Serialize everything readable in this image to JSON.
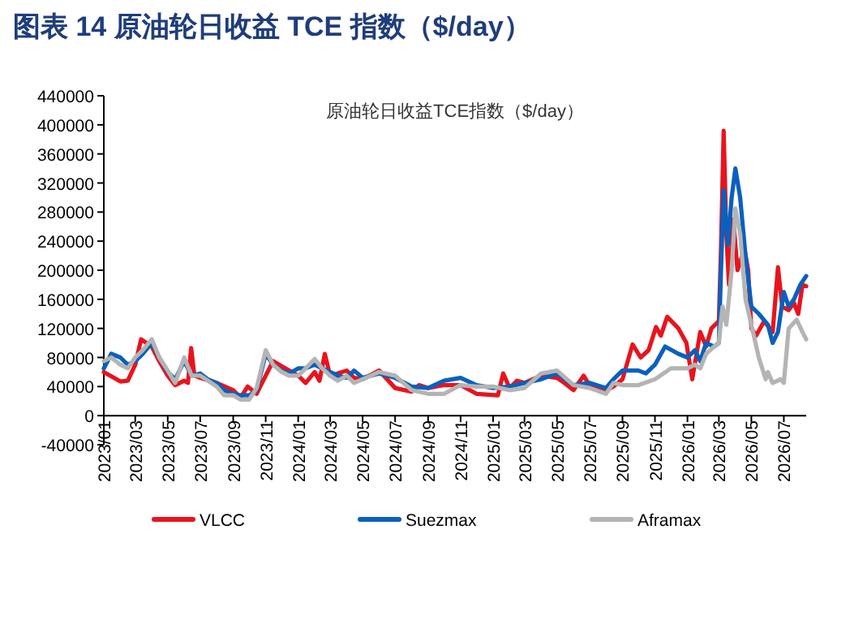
{
  "chart_data": {
    "type": "line",
    "title": "图表 14 原油轮日收益 TCE 指数（$/day）",
    "subtitle": "原油轮日收益TCE指数（$/day）",
    "xlim": [
      "2023-01-01",
      "2026-08-12"
    ],
    "xticks": [
      {
        "value": "2023-01",
        "label": "2023/01"
      },
      {
        "value": "2023-03",
        "label": "2023/03"
      },
      {
        "value": "2023-05",
        "label": "2023/05"
      },
      {
        "value": "2023-07",
        "label": "2023/07"
      },
      {
        "value": "2023-09",
        "label": "2023/09"
      },
      {
        "value": "2023-11",
        "label": "2023/11"
      },
      {
        "value": "2024-01",
        "label": "2024/01"
      },
      {
        "value": "2024-03",
        "label": "2024/03"
      },
      {
        "value": "2024-05",
        "label": "2024/05"
      },
      {
        "value": "2024-07",
        "label": "2024/07"
      },
      {
        "value": "2024-09",
        "label": "2024/09"
      },
      {
        "value": "2024-11",
        "label": "2024/11"
      },
      {
        "value": "2025-01",
        "label": "2025/01"
      },
      {
        "value": "2025-03",
        "label": "2025/03"
      },
      {
        "value": "2025-05",
        "label": "2025/05"
      },
      {
        "value": "2025-07",
        "label": "2025/07"
      },
      {
        "value": "2025-09",
        "label": "2025/09"
      },
      {
        "value": "2025-11",
        "label": "2025/11"
      },
      {
        "value": "2026-01",
        "label": "2026/01"
      },
      {
        "value": "2026-03",
        "label": "2026/03"
      },
      {
        "value": "2026-05",
        "label": "2026/05"
      },
      {
        "value": "2026-07",
        "label": "2026/07"
      }
    ],
    "ylim": [
      -40000,
      440000
    ],
    "yticks": [
      -40000,
      0,
      40000,
      80000,
      120000,
      160000,
      200000,
      240000,
      280000,
      320000,
      360000,
      400000,
      440000
    ],
    "grid": false,
    "legend": "bottom",
    "marker": "none",
    "line_style": "solid",
    "series": [
      {
        "name": "VLCC",
        "color": "#e8141d",
        "x": [
          "2023-01-01",
          "2023-02-01",
          "2023-02-15",
          "2023-03-01",
          "2023-03-12",
          "2023-04-01",
          "2023-04-15",
          "2023-05-01",
          "2023-05-15",
          "2023-06-01",
          "2023-06-08",
          "2023-06-14",
          "2023-06-20",
          "2023-07-01",
          "2023-08-01",
          "2023-09-01",
          "2023-09-15",
          "2023-09-28",
          "2023-10-15",
          "2023-11-01",
          "2023-11-15",
          "2023-12-01",
          "2024-01-01",
          "2024-01-15",
          "2024-02-01",
          "2024-02-10",
          "2024-02-20",
          "2024-03-01",
          "2024-03-15",
          "2024-04-01",
          "2024-04-15",
          "2024-05-01",
          "2024-06-01",
          "2024-07-01",
          "2024-08-01",
          "2024-08-15",
          "2024-09-01",
          "2024-10-01",
          "2024-11-01",
          "2024-12-01",
          "2025-01-10",
          "2025-01-20",
          "2025-02-01",
          "2025-02-15",
          "2025-03-01",
          "2025-04-01",
          "2025-05-01",
          "2025-05-15",
          "2025-06-01",
          "2025-06-20",
          "2025-07-01",
          "2025-08-01",
          "2025-08-15",
          "2025-09-01",
          "2025-09-20",
          "2025-10-05",
          "2025-10-20",
          "2025-11-03",
          "2025-11-12",
          "2025-11-24",
          "2025-12-15",
          "2025-12-30",
          "2026-01-10",
          "2026-01-25",
          "2026-02-05",
          "2026-02-15",
          "2026-03-01",
          "2026-03-05",
          "2026-03-10",
          "2026-03-15",
          "2026-03-20",
          "2026-03-28",
          "2026-04-05",
          "2026-04-18",
          "2026-04-25",
          "2026-05-01",
          "2026-05-10",
          "2026-05-25",
          "2026-06-10",
          "2026-06-20",
          "2026-06-28",
          "2026-07-10",
          "2026-07-20",
          "2026-07-28",
          "2026-08-05",
          "2026-08-12"
        ],
        "values": [
          60000,
          47000,
          48000,
          70000,
          105000,
          95000,
          75000,
          55000,
          42000,
          48000,
          45000,
          93000,
          55000,
          52000,
          45000,
          35000,
          25000,
          40000,
          30000,
          55000,
          75000,
          68000,
          55000,
          45000,
          60000,
          48000,
          85000,
          55000,
          58000,
          62000,
          52000,
          50000,
          62000,
          38000,
          33000,
          42000,
          38000,
          42000,
          42000,
          30000,
          28000,
          58000,
          38000,
          48000,
          45000,
          55000,
          52000,
          45000,
          35000,
          55000,
          42000,
          35000,
          40000,
          50000,
          98000,
          80000,
          90000,
          122000,
          110000,
          136000,
          120000,
          100000,
          50000,
          115000,
          95000,
          120000,
          130000,
          230000,
          392000,
          250000,
          180000,
          270000,
          200000,
          230000,
          200000,
          120000,
          110000,
          130000,
          115000,
          204000,
          150000,
          145000,
          155000,
          140000,
          180000,
          178000
        ]
      },
      {
        "name": "Suezmax",
        "color": "#0a60be",
        "x": [
          "2023-01-01",
          "2023-01-15",
          "2023-02-01",
          "2023-02-15",
          "2023-03-01",
          "2023-03-15",
          "2023-04-01",
          "2023-04-15",
          "2023-05-01",
          "2023-05-15",
          "2023-06-01",
          "2023-06-15",
          "2023-07-01",
          "2023-07-15",
          "2023-08-01",
          "2023-08-15",
          "2023-09-01",
          "2023-09-15",
          "2023-10-01",
          "2023-10-15",
          "2023-11-01",
          "2023-11-15",
          "2023-12-01",
          "2023-12-15",
          "2024-01-01",
          "2024-01-15",
          "2024-02-01",
          "2024-02-15",
          "2024-03-01",
          "2024-03-15",
          "2024-04-01",
          "2024-04-15",
          "2024-05-01",
          "2024-06-01",
          "2024-07-01",
          "2024-08-01",
          "2024-09-01",
          "2024-10-01",
          "2024-11-01",
          "2024-12-01",
          "2025-01-01",
          "2025-02-01",
          "2025-03-01",
          "2025-04-01",
          "2025-05-01",
          "2025-06-01",
          "2025-07-01",
          "2025-08-01",
          "2025-08-15",
          "2025-09-01",
          "2025-10-01",
          "2025-10-15",
          "2025-11-01",
          "2025-11-20",
          "2025-12-15",
          "2026-01-01",
          "2026-01-15",
          "2026-01-25",
          "2026-02-05",
          "2026-02-20",
          "2026-03-01",
          "2026-03-05",
          "2026-03-10",
          "2026-03-18",
          "2026-03-25",
          "2026-04-01",
          "2026-04-10",
          "2026-04-20",
          "2026-05-01",
          "2026-05-15",
          "2026-06-01",
          "2026-06-10",
          "2026-06-20",
          "2026-07-01",
          "2026-07-10",
          "2026-07-20",
          "2026-08-01",
          "2026-08-12"
        ],
        "values": [
          65000,
          85000,
          80000,
          70000,
          75000,
          85000,
          100000,
          80000,
          60000,
          50000,
          75000,
          55000,
          58000,
          50000,
          45000,
          35000,
          30000,
          28000,
          28000,
          35000,
          85000,
          70000,
          62000,
          58000,
          65000,
          65000,
          70000,
          65000,
          60000,
          55000,
          52000,
          62000,
          52000,
          58000,
          52000,
          40000,
          38000,
          48000,
          52000,
          42000,
          38000,
          40000,
          45000,
          50000,
          58000,
          42000,
          45000,
          38000,
          50000,
          62000,
          62000,
          58000,
          70000,
          95000,
          85000,
          80000,
          90000,
          75000,
          100000,
          95000,
          100000,
          200000,
          310000,
          235000,
          300000,
          340000,
          300000,
          220000,
          150000,
          140000,
          125000,
          100000,
          115000,
          170000,
          150000,
          160000,
          180000,
          192000
        ]
      },
      {
        "name": "Aframax",
        "color": "#b4b4b4",
        "x": [
          "2023-01-01",
          "2023-01-15",
          "2023-02-01",
          "2023-02-15",
          "2023-03-01",
          "2023-03-15",
          "2023-04-01",
          "2023-04-15",
          "2023-05-01",
          "2023-05-15",
          "2023-06-01",
          "2023-06-15",
          "2023-07-01",
          "2023-08-01",
          "2023-08-15",
          "2023-09-01",
          "2023-09-15",
          "2023-10-01",
          "2023-10-15",
          "2023-11-01",
          "2023-11-15",
          "2023-12-01",
          "2023-12-15",
          "2024-01-01",
          "2024-01-15",
          "2024-02-01",
          "2024-02-15",
          "2024-03-01",
          "2024-03-15",
          "2024-04-01",
          "2024-04-15",
          "2024-05-01",
          "2024-06-01",
          "2024-07-01",
          "2024-08-01",
          "2024-09-01",
          "2024-10-01",
          "2024-11-01",
          "2024-12-01",
          "2025-01-01",
          "2025-02-01",
          "2025-03-01",
          "2025-04-01",
          "2025-05-01",
          "2025-06-01",
          "2025-07-01",
          "2025-08-01",
          "2025-08-15",
          "2025-09-01",
          "2025-10-01",
          "2025-11-01",
          "2025-12-01",
          "2026-01-01",
          "2026-01-15",
          "2026-01-25",
          "2026-02-05",
          "2026-02-20",
          "2026-03-01",
          "2026-03-05",
          "2026-03-08",
          "2026-03-15",
          "2026-03-25",
          "2026-04-01",
          "2026-04-10",
          "2026-04-20",
          "2026-05-01",
          "2026-05-15",
          "2026-05-28",
          "2026-06-01",
          "2026-06-10",
          "2026-06-25",
          "2026-07-01",
          "2026-07-10",
          "2026-07-25",
          "2026-08-05",
          "2026-08-12"
        ],
        "values": [
          75000,
          80000,
          70000,
          65000,
          80000,
          90000,
          105000,
          80000,
          62000,
          45000,
          80000,
          55000,
          55000,
          40000,
          28000,
          28000,
          22000,
          22000,
          38000,
          90000,
          70000,
          60000,
          55000,
          55000,
          65000,
          78000,
          65000,
          55000,
          48000,
          55000,
          45000,
          50000,
          60000,
          55000,
          35000,
          30000,
          30000,
          42000,
          40000,
          40000,
          35000,
          38000,
          58000,
          62000,
          42000,
          38000,
          30000,
          45000,
          42000,
          42000,
          50000,
          65000,
          65000,
          70000,
          65000,
          85000,
          95000,
          100000,
          130000,
          150000,
          125000,
          200000,
          285000,
          250000,
          160000,
          125000,
          80000,
          50000,
          60000,
          45000,
          50000,
          45000,
          120000,
          132000,
          115000,
          105000
        ]
      }
    ]
  }
}
